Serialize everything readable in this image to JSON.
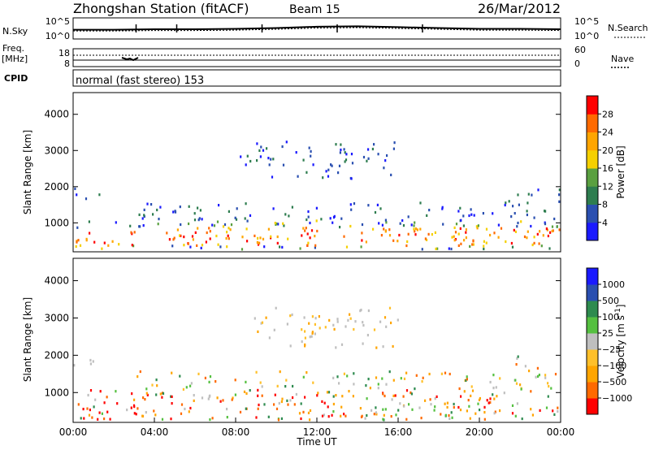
{
  "header": {
    "title": "Zhongshan Station (fitACF)",
    "beam": "Beam 15",
    "date": "26/Mar/2012"
  },
  "colors": {
    "power": [
      "#1a1aff",
      "#2a4fb0",
      "#2e7d4f",
      "#5aa040",
      "#f5d000",
      "#ffa500",
      "#ff6a00",
      "#ff0000"
    ],
    "velocity": [
      "#ff0000",
      "#ff6a00",
      "#ffa500",
      "#ffc02a",
      "#bfbfbf",
      "#55c040",
      "#2e8b4f",
      "#2a4fb0",
      "#1a1aff"
    ]
  },
  "chart_data": [
    {
      "type": "line",
      "panel": "nsky-nsearch",
      "left_label": "N.Sky",
      "right_label": "N.Search",
      "left_ticks": [
        "10^5",
        "10^0"
      ],
      "right_ticks": [
        "10^5",
        "10^0"
      ],
      "x": [
        0,
        2,
        4,
        6,
        8,
        10,
        12,
        14,
        16,
        18,
        20,
        22,
        24
      ],
      "series": [
        {
          "values": [
            2.2,
            2.2,
            2.3,
            2.3,
            2.4,
            2.6,
            2.9,
            3.0,
            2.8,
            2.6,
            2.4,
            2.4,
            2.3
          ]
        },
        {
          "values": [
            1.9,
            1.9,
            2.0,
            2.0,
            2.1,
            2.3,
            2.6,
            2.7,
            2.5,
            2.3,
            2.1,
            2.1,
            2.0
          ]
        }
      ]
    },
    {
      "type": "line",
      "panel": "freq-nave",
      "left_label": "Freq.",
      "left_unit": "[MHz]",
      "right_label": "Nave",
      "left_ticks": [
        "18",
        "8"
      ],
      "right_ticks": [
        "60",
        "0"
      ]
    },
    {
      "type": "table",
      "panel": "cpid",
      "label": "CPID",
      "text": "normal (fast stereo) 153"
    },
    {
      "type": "heatmap",
      "panel": "power",
      "ylabel": "Slant Range [km]",
      "yticks": [
        "1000",
        "2000",
        "3000",
        "4000"
      ],
      "ylim": [
        200,
        4600
      ],
      "colorbar_label": "Power [dB]",
      "colorbar_ticks": [
        "4",
        "8",
        "12",
        "16",
        "20",
        "24",
        "28"
      ],
      "scale": [
        0,
        32
      ]
    },
    {
      "type": "heatmap",
      "panel": "velocity",
      "ylabel": "Slant Range [km]",
      "yticks": [
        "1000",
        "2000",
        "3000",
        "4000"
      ],
      "ylim": [
        200,
        4600
      ],
      "colorbar_label": "Velocity [m s",
      "colorbar_label_sup": "-1",
      "colorbar_ticks": [
        "1000",
        "500",
        "100",
        "25",
        "−25",
        "−100",
        "−500",
        "−1000"
      ]
    }
  ],
  "x_axis": {
    "ticks": [
      "00:00",
      "04:00",
      "08:00",
      "12:00",
      "16:00",
      "20:00",
      "00:00"
    ],
    "label": "Time UT",
    "range": [
      0,
      24
    ]
  }
}
